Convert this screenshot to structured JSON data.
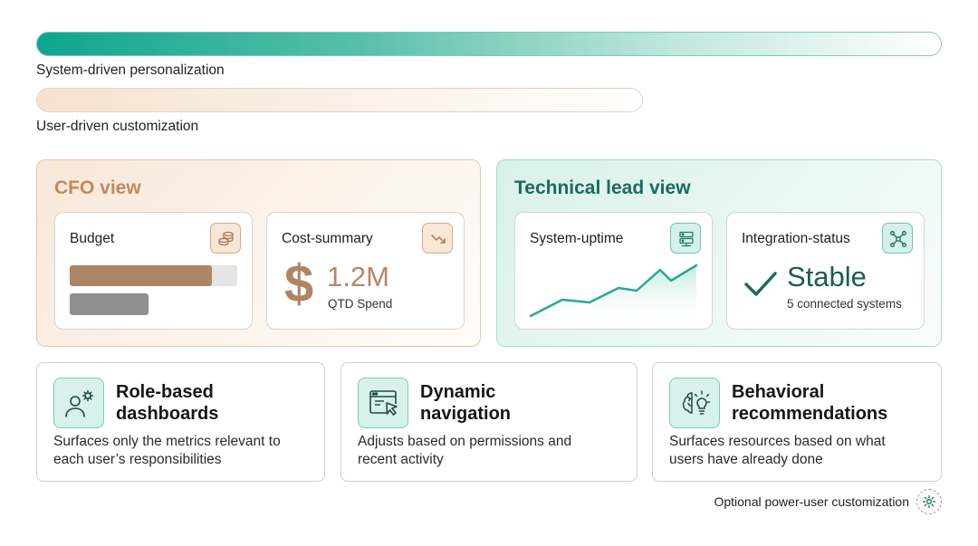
{
  "modes": {
    "system_label": "System-driven personalization",
    "user_label": "User-driven customization"
  },
  "cfo_view": {
    "title": "CFO view",
    "budget": {
      "label": "Budget",
      "icon": "coins-stack-icon",
      "primary_fill": 0.85
    },
    "cost_summary": {
      "label": "Cost-summary",
      "icon": "trend-down-icon",
      "currency_symbol": "$",
      "value": "1.2M",
      "caption": "QTD Spend"
    }
  },
  "tech_view": {
    "title": "Technical lead view",
    "uptime": {
      "label": "System-uptime",
      "icon": "server-icon"
    },
    "integration": {
      "label": "Integration-status",
      "icon": "network-nodes-icon",
      "value": "Stable",
      "caption": "5 connected systems"
    }
  },
  "features": [
    {
      "title_line1": "Role-based",
      "title_line2": "dashboards",
      "desc_line1": "Surfaces only the metrics relevant to",
      "desc_line2": "each user’s responsibilities",
      "icon": "user-gear-icon"
    },
    {
      "title_line1": "Dynamic",
      "title_line2": "navigation",
      "desc_line1": "Adjusts based on permissions and",
      "desc_line2": "recent activity",
      "icon": "window-cursor-icon"
    },
    {
      "title_line1": "Behavioral",
      "title_line2": "recommendations",
      "desc_line1": "Surfaces resources based on what",
      "desc_line2": "users have already done",
      "icon": "brain-lightbulb-icon"
    }
  ],
  "footer": {
    "power_user_label": "Optional power-user customization",
    "icon": "gear-icon"
  },
  "colors": {
    "teal": "#0fa58e",
    "warm": "#b08566"
  }
}
